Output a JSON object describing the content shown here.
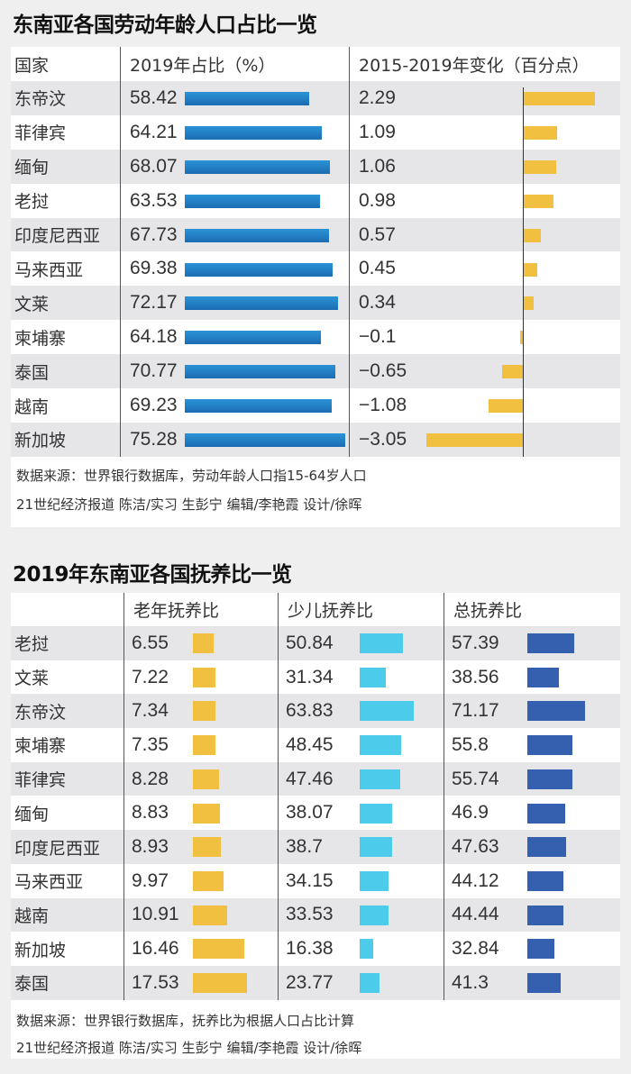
{
  "chart_data": [
    {
      "type": "table",
      "title": "东南亚各国劳动年龄人口占比一览",
      "headers": [
        "国家",
        "2019年占比（%）",
        "2015-2019年变化（百分点）"
      ],
      "categories": [
        "东帝汶",
        "菲律宾",
        "缅甸",
        "老挝",
        "印度尼西亚",
        "马来西亚",
        "文莱",
        "柬埔寨",
        "泰国",
        "越南",
        "新加坡"
      ],
      "series": [
        {
          "name": "2019年占比（%）",
          "color": "#1f7cc4",
          "values": [
            58.42,
            64.21,
            68.07,
            63.53,
            67.73,
            69.38,
            72.17,
            64.18,
            70.77,
            69.23,
            75.28
          ]
        },
        {
          "name": "2015-2019年变化（百分点）",
          "color": "#f2c040",
          "values": [
            2.29,
            1.09,
            1.06,
            0.98,
            0.57,
            0.45,
            0.34,
            -0.1,
            -0.65,
            -1.08,
            -3.05
          ]
        }
      ],
      "value_labels": [
        [
          "58.42",
          "64.21",
          "68.07",
          "63.53",
          "67.73",
          "69.38",
          "72.17",
          "64.18",
          "70.77",
          "69.23",
          "75.28"
        ],
        [
          "2.29",
          "1.09",
          "1.06",
          "0.98",
          "0.57",
          "0.45",
          "0.34",
          "−0.1",
          "−0.65",
          "−1.08",
          "−3.05"
        ]
      ],
      "notes": [
        "数据来源：世界银行数据库，劳动年龄人口指15-64岁人口",
        "21世纪经济报道 陈洁/实习 生彭宁  编辑/李艳霞 设计/徐晖"
      ]
    },
    {
      "type": "table",
      "title": "2019年东南亚各国抚养比一览",
      "headers": [
        "",
        "老年抚养比",
        "少儿抚养比",
        "总抚养比"
      ],
      "categories": [
        "老挝",
        "文莱",
        "东帝汶",
        "柬埔寨",
        "菲律宾",
        "缅甸",
        "印度尼西亚",
        "马来西亚",
        "越南",
        "新加坡",
        "泰国"
      ],
      "series": [
        {
          "name": "老年抚养比",
          "color": "#f2c040",
          "values": [
            6.55,
            7.22,
            7.34,
            7.35,
            8.28,
            8.83,
            8.93,
            9.97,
            10.91,
            16.46,
            17.53
          ]
        },
        {
          "name": "少儿抚养比",
          "color": "#4ccbea",
          "values": [
            50.84,
            31.34,
            63.83,
            48.45,
            47.46,
            38.07,
            38.7,
            34.15,
            33.53,
            16.38,
            23.77
          ]
        },
        {
          "name": "总抚养比",
          "color": "#3560b0",
          "values": [
            57.39,
            38.56,
            71.17,
            55.8,
            55.74,
            46.9,
            47.63,
            44.12,
            44.44,
            32.84,
            41.3
          ]
        }
      ],
      "value_labels": [
        [
          "6.55",
          "7.22",
          "7.34",
          "7.35",
          "8.28",
          "8.83",
          "8.93",
          "9.97",
          "10.91",
          "16.46",
          "17.53"
        ],
        [
          "50.84",
          "31.34",
          "63.83",
          "48.45",
          "47.46",
          "38.07",
          "38.7",
          "34.15",
          "33.53",
          "16.38",
          "23.77"
        ],
        [
          "57.39",
          "38.56",
          "71.17",
          "55.8",
          "55.74",
          "46.9",
          "47.63",
          "44.12",
          "44.44",
          "32.84",
          "41.3"
        ]
      ],
      "notes": [
        "数据来源：世界银行数据库，抚养比为根据人口占比计算",
        "21世纪经济报道 陈洁/实习 生彭宁  编辑/李艳霞 设计/徐晖"
      ]
    }
  ]
}
